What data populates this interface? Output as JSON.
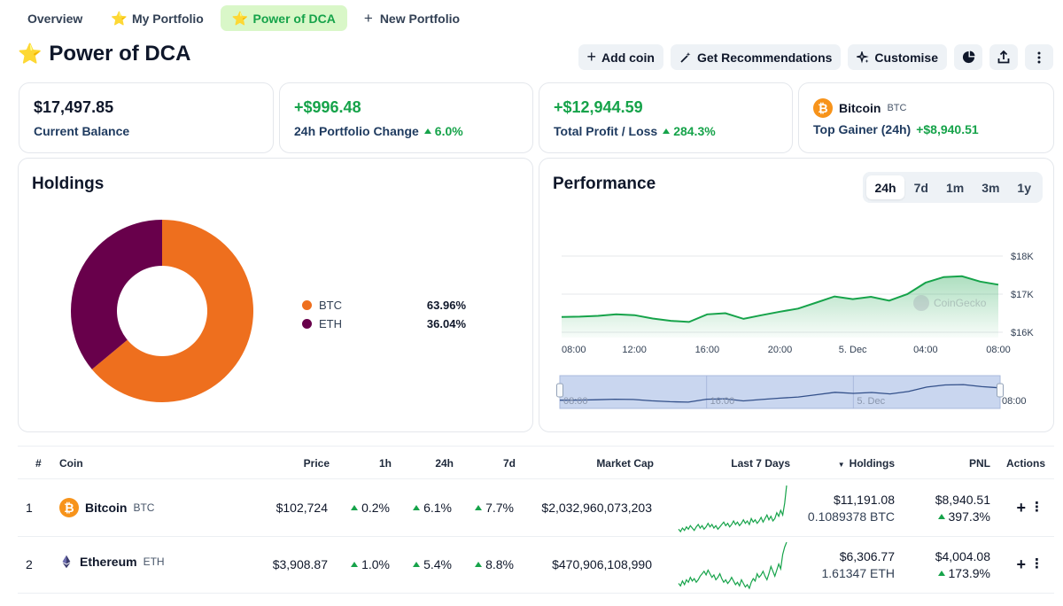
{
  "tabs": [
    {
      "label": "Overview"
    },
    {
      "label": "My Portfolio"
    },
    {
      "label": "Power of DCA"
    },
    {
      "label": "New Portfolio"
    }
  ],
  "page": {
    "title": "Power of DCA"
  },
  "toolbar": {
    "add_coin": "Add coin",
    "recommendations": "Get Recommendations",
    "customise": "Customise"
  },
  "stats": {
    "balance": {
      "value": "$17,497.85",
      "label": "Current Balance"
    },
    "change24h": {
      "value": "+$996.48",
      "label": "24h Portfolio Change",
      "pct": "6.0%"
    },
    "profit": {
      "value": "+$12,944.59",
      "label": "Total Profit / Loss",
      "pct": "284.3%"
    },
    "gainer": {
      "coin": "Bitcoin",
      "symbol": "BTC",
      "label": "Top Gainer (24h)",
      "value": "+$8,940.51"
    }
  },
  "holdings": {
    "title": "Holdings",
    "items": [
      {
        "name": "BTC",
        "pct": "63.96%",
        "value": 63.96,
        "color": "#ee6f1e"
      },
      {
        "name": "ETH",
        "pct": "36.04%",
        "value": 36.04,
        "color": "#68004b"
      }
    ]
  },
  "performance": {
    "title": "Performance",
    "ranges": [
      "24h",
      "7d",
      "1m",
      "3m",
      "1y"
    ],
    "active_range": "24h",
    "watermark": "CoinGecko",
    "line_color": "#16a34a"
  },
  "chart_data": {
    "type": "area",
    "title": "Performance",
    "x": [
      "08:00",
      "09:00",
      "10:00",
      "11:00",
      "12:00",
      "13:00",
      "14:00",
      "15:00",
      "16:00",
      "17:00",
      "18:00",
      "19:00",
      "20:00",
      "21:00",
      "22:00",
      "23:00",
      "00:00",
      "01:00",
      "02:00",
      "03:00",
      "04:00",
      "05:00",
      "06:00",
      "07:00",
      "08:00"
    ],
    "values": [
      16400,
      16410,
      16430,
      16470,
      16450,
      16360,
      16300,
      16270,
      16470,
      16500,
      16350,
      16450,
      16540,
      16620,
      16780,
      16940,
      16870,
      16930,
      16830,
      17000,
      17300,
      17450,
      17470,
      17330,
      17250
    ],
    "ylim": [
      16000,
      18000
    ],
    "y_ticks": [
      "$16K",
      "$17K",
      "$18K"
    ],
    "x_ticks": [
      "08:00",
      "12:00",
      "16:00",
      "20:00",
      "5. Dec",
      "04:00",
      "08:00"
    ],
    "navigator_ticks": [
      "08:00",
      "16:00",
      "5. Dec",
      "08:00"
    ]
  },
  "table": {
    "headers": {
      "rank": "#",
      "coin": "Coin",
      "price": "Price",
      "h1": "1h",
      "h24": "24h",
      "d7": "7d",
      "mcap": "Market Cap",
      "last7": "Last 7 Days",
      "holdings": "Holdings",
      "pnl": "PNL",
      "actions": "Actions"
    },
    "rows": [
      {
        "rank": "1",
        "name": "Bitcoin",
        "symbol": "BTC",
        "price": "$102,724",
        "h1": "0.2%",
        "h24": "6.1%",
        "d7": "7.7%",
        "mcap": "$2,032,960,073,203",
        "holdings_value": "$11,191.08",
        "holdings_amount": "0.1089378 BTC",
        "pnl": "$8,940.51",
        "pnl_pct": "397.3%",
        "spark": [
          42,
          44,
          41,
          43,
          40,
          42,
          39,
          41,
          43,
          40,
          38,
          41,
          39,
          42,
          40,
          37,
          40,
          38,
          41,
          39,
          42,
          40,
          38,
          36,
          39,
          37,
          40,
          38,
          35,
          38,
          36,
          39,
          37,
          34,
          37,
          35,
          38,
          33,
          36,
          34,
          37,
          35,
          32,
          36,
          33,
          30,
          34,
          31,
          35,
          33,
          28,
          31,
          26,
          30,
          20,
          5
        ]
      },
      {
        "rank": "2",
        "name": "Ethereum",
        "symbol": "ETH",
        "price": "$3,908.87",
        "h1": "1.0%",
        "h24": "5.4%",
        "d7": "8.8%",
        "mcap": "$470,906,108,990",
        "holdings_value": "$6,306.77",
        "holdings_amount": "1.61347 ETH",
        "pnl": "$4,004.08",
        "pnl_pct": "173.9%",
        "spark": [
          38,
          40,
          36,
          39,
          35,
          37,
          33,
          36,
          34,
          37,
          35,
          32,
          30,
          28,
          31,
          27,
          30,
          33,
          31,
          35,
          33,
          30,
          34,
          37,
          35,
          38,
          36,
          33,
          36,
          39,
          37,
          40,
          35,
          38,
          41,
          39,
          42,
          37,
          34,
          36,
          30,
          33,
          31,
          28,
          32,
          35,
          30,
          24,
          28,
          32,
          27,
          22,
          26,
          14,
          8,
          4
        ]
      }
    ]
  }
}
